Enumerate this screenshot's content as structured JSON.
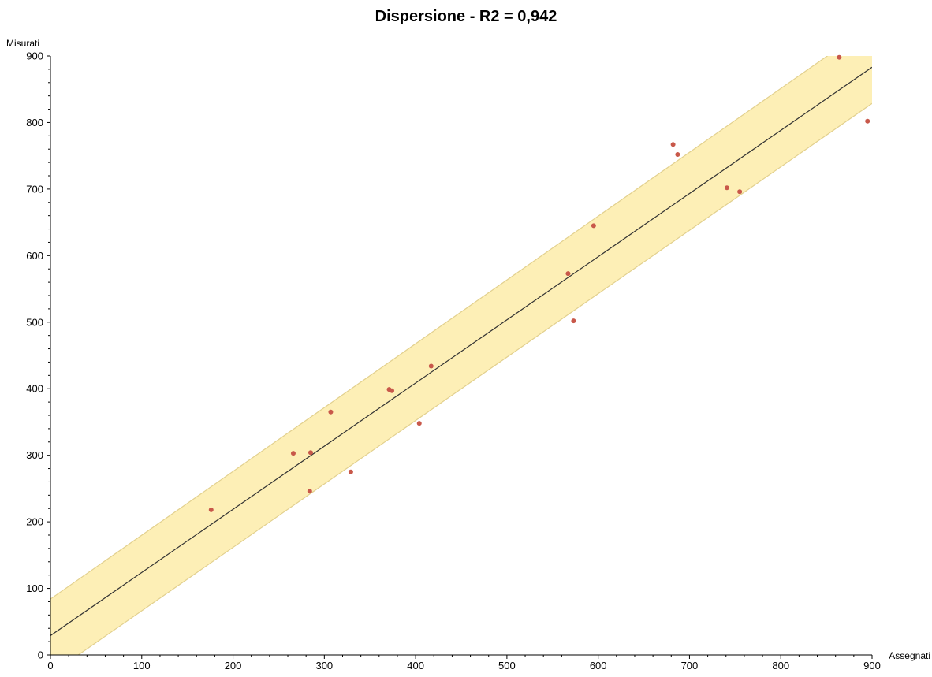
{
  "chart_data": {
    "type": "scatter",
    "title": "Dispersione - R2 = 0,942",
    "xlabel": "Assegnati",
    "ylabel": "Misurati",
    "xlim": [
      0,
      900
    ],
    "ylim": [
      0,
      900
    ],
    "x_ticks": [
      "0",
      "100",
      "200",
      "300",
      "400",
      "500",
      "600",
      "700",
      "800",
      "900"
    ],
    "y_ticks": [
      "0",
      "100",
      "200",
      "300",
      "400",
      "500",
      "600",
      "700",
      "800",
      "900"
    ],
    "grid": false,
    "regression_line": {
      "intercept": 29,
      "slope": 0.949
    },
    "confidence_band": {
      "upper_intercept": 84,
      "upper_slope": 0.9589,
      "lower_intercept": -29,
      "lower_slope": 0.953
    },
    "colors": {
      "points": "#c8584a",
      "band_fill": "#fdefb6",
      "band_edge": "#e2d08e",
      "line": "#333333"
    },
    "points": [
      {
        "x": 176,
        "y": 218
      },
      {
        "x": 266,
        "y": 303
      },
      {
        "x": 285,
        "y": 304
      },
      {
        "x": 284,
        "y": 246
      },
      {
        "x": 307,
        "y": 365
      },
      {
        "x": 329,
        "y": 275
      },
      {
        "x": 371,
        "y": 399
      },
      {
        "x": 374,
        "y": 397
      },
      {
        "x": 404,
        "y": 348
      },
      {
        "x": 417,
        "y": 434
      },
      {
        "x": 567,
        "y": 573
      },
      {
        "x": 573,
        "y": 502
      },
      {
        "x": 595,
        "y": 645
      },
      {
        "x": 682,
        "y": 767
      },
      {
        "x": 687,
        "y": 752
      },
      {
        "x": 741,
        "y": 702
      },
      {
        "x": 755,
        "y": 696
      },
      {
        "x": 864,
        "y": 898
      },
      {
        "x": 895,
        "y": 802
      }
    ]
  }
}
